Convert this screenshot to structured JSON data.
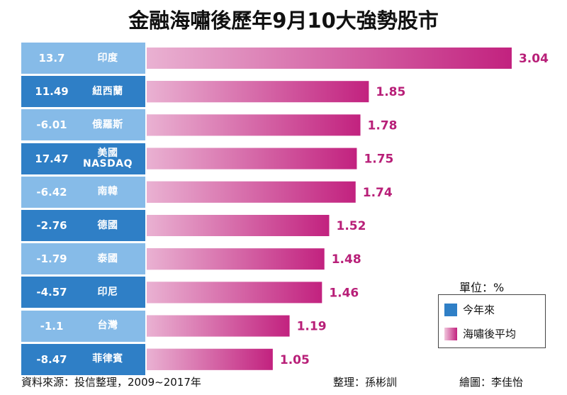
{
  "chart_data": {
    "type": "bar",
    "orientation": "horizontal",
    "title": "金融海嘯後歷年9月10大強勢股市",
    "categories": [
      "印度",
      "紐西蘭",
      "俄羅斯",
      "美國 NASDAQ",
      "南韓",
      "德國",
      "泰國",
      "印尼",
      "台灣",
      "菲律賓"
    ],
    "series": [
      {
        "name": "今年來",
        "color": "#2f7fc6",
        "values": [
          13.7,
          11.49,
          -6.01,
          17.47,
          -6.42,
          -2.76,
          -1.79,
          -4.57,
          -1.1,
          -8.47
        ]
      },
      {
        "name": "海嘯後平均",
        "color": "#c2227f",
        "values": [
          3.04,
          1.85,
          1.78,
          1.75,
          1.74,
          1.52,
          1.48,
          1.46,
          1.19,
          1.05
        ]
      }
    ],
    "unit_label": "單位：%"
  },
  "footer": {
    "source": "資料來源：投信整理，2009~2017年",
    "editor": "整理：孫彬訓",
    "artist": "繪圖：李佳怡"
  }
}
